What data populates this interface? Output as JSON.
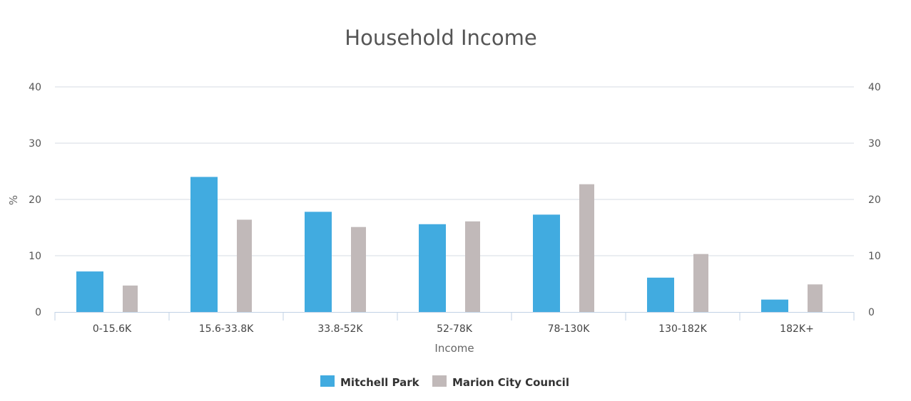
{
  "chart_data": {
    "type": "bar",
    "title": "Household Income",
    "xlabel": "Income",
    "ylabel": "%",
    "categories": [
      "0-15.6K",
      "15.6-33.8K",
      "33.8-52K",
      "52-78K",
      "78-130K",
      "130-182K",
      "182K+"
    ],
    "series": [
      {
        "name": "Mitchell Park",
        "color": "#41abe0",
        "values": [
          7.2,
          24.0,
          17.8,
          15.6,
          17.3,
          6.1,
          2.2
        ]
      },
      {
        "name": "Marion City Council",
        "color": "#c1b9b9",
        "values": [
          4.7,
          16.4,
          15.1,
          16.1,
          22.7,
          10.3,
          4.9
        ]
      }
    ],
    "ylim": [
      0,
      40
    ],
    "yticks": [
      "0",
      "10",
      "20",
      "30",
      "40"
    ],
    "secondary_yticks": [
      "0",
      "10",
      "20",
      "30",
      "40"
    ],
    "grid": true,
    "legend_position": "bottom-center"
  }
}
